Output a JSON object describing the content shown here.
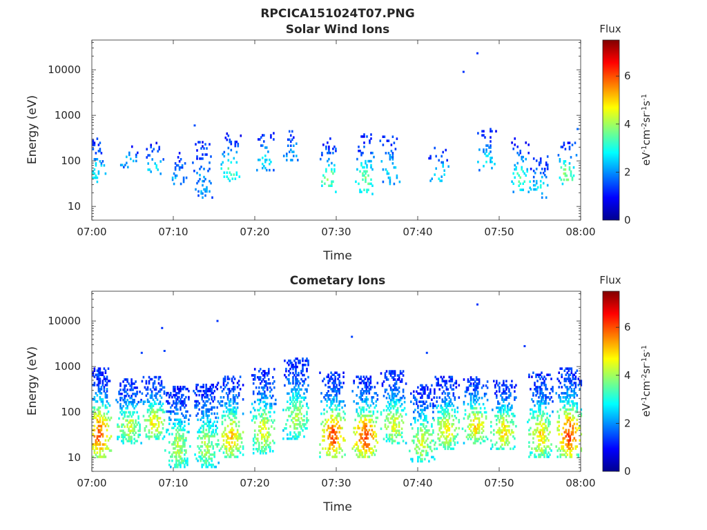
{
  "figure_title": "RPCICA151024T07.PNG",
  "colorbar_label": "eV-1cm-2sr-1s-1",
  "colorbar_title": "Flux",
  "chart_data": [
    {
      "type": "heatmap",
      "title": "Solar Wind Ions",
      "xlabel": "Time",
      "ylabel": "Energy (eV)",
      "x_ticks": [
        "07:00",
        "07:10",
        "07:20",
        "07:30",
        "07:40",
        "07:50",
        "08:00"
      ],
      "x_range_minutes": [
        0,
        60
      ],
      "y_scale": "log",
      "y_ticks": [
        "10",
        "100",
        "1000",
        "10000"
      ],
      "y_range": [
        5,
        45000
      ],
      "color_scale": {
        "label": "Flux",
        "unit": "eV-1cm-2sr-1s-1",
        "range": [
          0,
          7.5
        ],
        "ticks": [
          "0",
          "2",
          "4",
          "6"
        ],
        "colormap": "jet"
      },
      "clusters": [
        {
          "t": 0.4,
          "e_min": 30,
          "e_max": 300,
          "peak": 3.0
        },
        {
          "t": 4.5,
          "e_min": 70,
          "e_max": 200,
          "peak": 2.6
        },
        {
          "t": 7.5,
          "e_min": 50,
          "e_max": 250,
          "peak": 2.6
        },
        {
          "t": 10.5,
          "e_min": 30,
          "e_max": 150,
          "peak": 2.3
        },
        {
          "t": 13.5,
          "e_min": 15,
          "e_max": 250,
          "peak": 2.2
        },
        {
          "t": 17.0,
          "e_min": 35,
          "e_max": 400,
          "peak": 3.6
        },
        {
          "t": 21.2,
          "e_min": 60,
          "e_max": 400,
          "peak": 2.8
        },
        {
          "t": 24.5,
          "e_min": 100,
          "e_max": 450,
          "peak": 2.3
        },
        {
          "t": 29.0,
          "e_min": 20,
          "e_max": 300,
          "peak": 3.9
        },
        {
          "t": 33.5,
          "e_min": 18,
          "e_max": 400,
          "peak": 3.7
        },
        {
          "t": 36.5,
          "e_min": 30,
          "e_max": 350,
          "peak": 2.8
        },
        {
          "t": 42.5,
          "e_min": 35,
          "e_max": 200,
          "peak": 2.9
        },
        {
          "t": 48.5,
          "e_min": 60,
          "e_max": 500,
          "peak": 2.6
        },
        {
          "t": 52.5,
          "e_min": 20,
          "e_max": 300,
          "peak": 3.4
        },
        {
          "t": 55.0,
          "e_min": 15,
          "e_max": 120,
          "peak": 2.9
        },
        {
          "t": 58.2,
          "e_min": 30,
          "e_max": 250,
          "peak": 4.0
        }
      ],
      "sparse_points": [
        {
          "t": 45.5,
          "e": 9000,
          "v": 1.3
        },
        {
          "t": 47.2,
          "e": 23000,
          "v": 1.3
        },
        {
          "t": 12.5,
          "e": 600,
          "v": 1.5
        },
        {
          "t": 59.5,
          "e": 500,
          "v": 1.7
        }
      ]
    },
    {
      "type": "heatmap",
      "title": "Cometary Ions",
      "xlabel": "Time",
      "ylabel": "Energy (eV)",
      "x_ticks": [
        "07:00",
        "07:10",
        "07:20",
        "07:30",
        "07:40",
        "07:50",
        "08:00"
      ],
      "x_range_minutes": [
        0,
        60
      ],
      "y_scale": "log",
      "y_ticks": [
        "10",
        "100",
        "1000",
        "10000"
      ],
      "y_range": [
        5,
        45000
      ],
      "color_scale": {
        "label": "Flux",
        "unit": "eV-1cm-2sr-1s-1",
        "range": [
          0,
          7.5
        ],
        "ticks": [
          "0",
          "2",
          "4",
          "6"
        ],
        "colormap": "jet"
      },
      "clusters": [
        {
          "t": 0.8,
          "e_min": 10,
          "e_max": 900,
          "peak": 6.0
        },
        {
          "t": 4.5,
          "e_min": 20,
          "e_max": 500,
          "peak": 4.4
        },
        {
          "t": 7.5,
          "e_min": 25,
          "e_max": 600,
          "peak": 4.8
        },
        {
          "t": 10.5,
          "e_min": 6,
          "e_max": 350,
          "peak": 4.3
        },
        {
          "t": 14.0,
          "e_min": 6,
          "e_max": 400,
          "peak": 4.2
        },
        {
          "t": 17.0,
          "e_min": 10,
          "e_max": 600,
          "peak": 5.2
        },
        {
          "t": 21.0,
          "e_min": 12,
          "e_max": 900,
          "peak": 4.6
        },
        {
          "t": 25.0,
          "e_min": 25,
          "e_max": 1500,
          "peak": 4.2
        },
        {
          "t": 29.5,
          "e_min": 10,
          "e_max": 700,
          "peak": 6.2
        },
        {
          "t": 33.5,
          "e_min": 10,
          "e_max": 600,
          "peak": 6.3
        },
        {
          "t": 37.0,
          "e_min": 20,
          "e_max": 800,
          "peak": 4.6
        },
        {
          "t": 40.5,
          "e_min": 8,
          "e_max": 400,
          "peak": 4.5
        },
        {
          "t": 43.5,
          "e_min": 15,
          "e_max": 600,
          "peak": 4.8
        },
        {
          "t": 47.0,
          "e_min": 20,
          "e_max": 600,
          "peak": 5.0
        },
        {
          "t": 50.5,
          "e_min": 15,
          "e_max": 500,
          "peak": 5.0
        },
        {
          "t": 55.0,
          "e_min": 10,
          "e_max": 700,
          "peak": 5.0
        },
        {
          "t": 58.5,
          "e_min": 10,
          "e_max": 900,
          "peak": 6.2
        }
      ],
      "sparse_points": [
        {
          "t": 8.5,
          "e": 7000,
          "v": 1.3
        },
        {
          "t": 15.3,
          "e": 10000,
          "v": 1.3
        },
        {
          "t": 47.2,
          "e": 23000,
          "v": 1.3
        },
        {
          "t": 31.8,
          "e": 4500,
          "v": 1.4
        },
        {
          "t": 53.0,
          "e": 2800,
          "v": 1.3
        },
        {
          "t": 6.0,
          "e": 2000,
          "v": 1.4
        },
        {
          "t": 8.8,
          "e": 2200,
          "v": 1.4
        },
        {
          "t": 41.0,
          "e": 2000,
          "v": 1.4
        }
      ]
    }
  ]
}
